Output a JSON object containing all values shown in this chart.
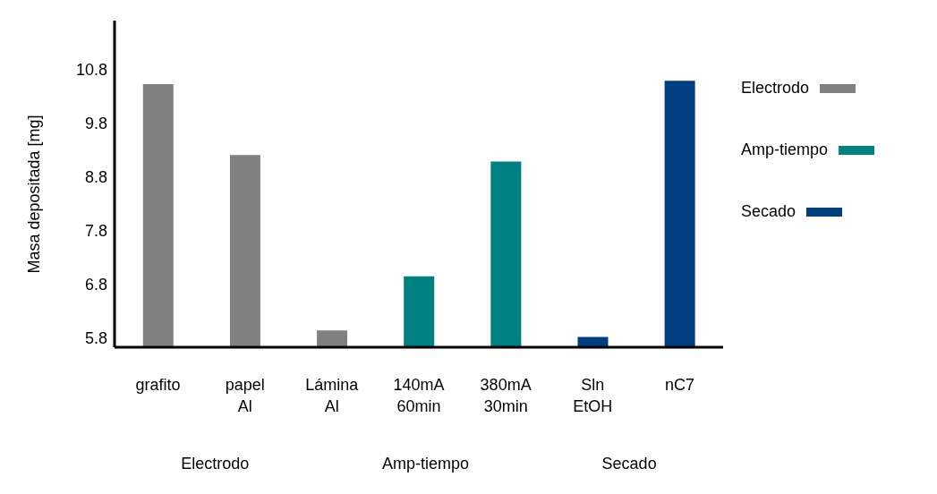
{
  "chart_data": {
    "type": "bar",
    "ylabel": "Masa depositada [mg]",
    "categories": [
      "grafito",
      "papel Al",
      "Lámina Al",
      "140mA 60min",
      "380mA 30min",
      "Sln EtOH",
      "nC7"
    ],
    "series": [
      {
        "name": "Electrodo",
        "color": "#808080",
        "values": [
          10.52,
          9.2,
          5.94,
          null,
          null,
          null,
          null
        ]
      },
      {
        "name": "Amp-tiempo",
        "color": "#008080",
        "values": [
          null,
          null,
          null,
          6.95,
          9.08,
          null,
          null
        ]
      },
      {
        "name": "Secado",
        "color": "#003f7f",
        "values": [
          null,
          null,
          null,
          null,
          null,
          5.82,
          10.58
        ]
      }
    ],
    "ylim": [
      5.63,
      11.7
    ],
    "yticks": [
      5.8,
      6.8,
      7.8,
      8.8,
      9.8,
      10.8
    ],
    "grid": false,
    "legend": "right",
    "annotations": [
      "Electrodo",
      "Amp-tiempo",
      "Secado"
    ]
  }
}
